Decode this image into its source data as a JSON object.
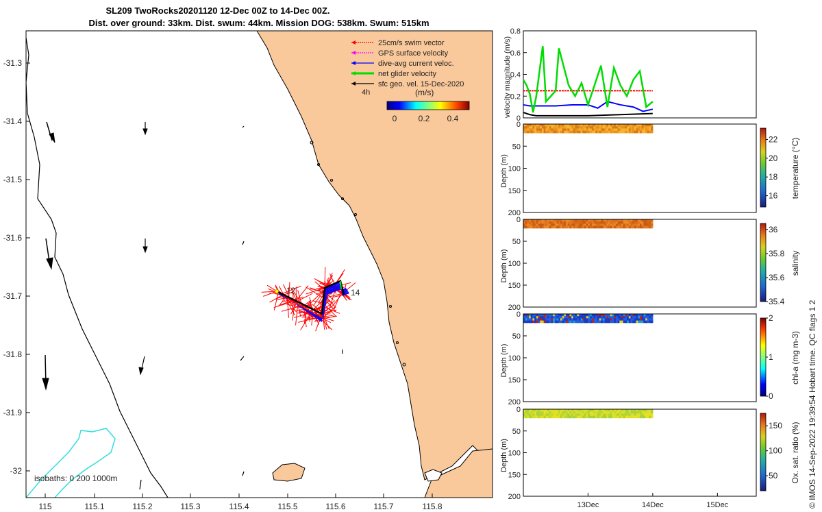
{
  "title": {
    "line1": "SL209 TwoRocks20201120 12-Dec 00Z to 14-Dec 00Z.",
    "line2": "Dist. over ground: 33km. Dist. swum: 44km. Mission DOG: 538km. Swum: 515km"
  },
  "credit": "© IMOS 14-Sep-2022 19:39:54 Hobart time. QC flags 1 2",
  "colors": {
    "land": "#f9c89b",
    "coast": "#000000",
    "isobath": "#33dddd",
    "swim": "#ff0000",
    "gps": "#ff00ff",
    "dive": "#0000ff",
    "net": "#00dd00",
    "geo": "#000000"
  },
  "map": {
    "x_ticks": [
      "115",
      "115.1",
      "115.2",
      "115.3",
      "115.4",
      "115.5",
      "115.6",
      "115.7",
      "115.8"
    ],
    "y_ticks": [
      "-31.3",
      "-31.4",
      "-31.5",
      "-31.6",
      "-31.7",
      "-31.8",
      "-31.9",
      "-32"
    ],
    "legend": [
      {
        "label": "25cm/s swim vector",
        "color": "#ff0000"
      },
      {
        "label": "GPS surface velocity",
        "color": "#ff00ff"
      },
      {
        "label": "dive-avg current veloc.",
        "color": "#0000ff"
      },
      {
        "label": "net glider velocity",
        "color": "#00dd00"
      },
      {
        "label": "sfc geo. vel. 15-Dec-2020",
        "color": "#000000"
      }
    ],
    "scale_label": "4h",
    "colorbar_unit": "(m/s)",
    "colorbar_ticks": [
      "0",
      "0.2",
      "0.4"
    ],
    "day_labels": [
      "12",
      "14"
    ],
    "isobaths_label": "isobaths: 0   200  1000m"
  },
  "chart_data": [
    {
      "type": "line",
      "title": "",
      "ylabel": "velocity magnitude (m/s)",
      "ylim": [
        0,
        0.8
      ],
      "y_ticks": [
        "0",
        "0.2",
        "0.4",
        "0.6",
        "0.8"
      ],
      "series": [
        {
          "name": "swim speed",
          "color": "#ff0000",
          "x": [
            12.0,
            12.2,
            12.4,
            12.6,
            12.8,
            13.0,
            13.2,
            13.4,
            13.6,
            13.8,
            14.0
          ],
          "values": [
            0.25,
            0.25,
            0.25,
            0.25,
            0.25,
            0.25,
            0.25,
            0.25,
            0.25,
            0.25,
            0.25
          ]
        },
        {
          "name": "dive-avg current",
          "color": "#0000ff",
          "x": [
            12.0,
            12.1,
            12.25,
            12.5,
            12.75,
            13.0,
            13.15,
            13.3,
            13.5,
            13.7,
            13.85,
            14.0
          ],
          "values": [
            0.12,
            0.11,
            0.11,
            0.11,
            0.12,
            0.12,
            0.09,
            0.15,
            0.12,
            0.1,
            0.06,
            0.08
          ]
        },
        {
          "name": "net glider velocity",
          "color": "#00dd00",
          "x": [
            12.0,
            12.05,
            12.1,
            12.15,
            12.2,
            12.3,
            12.35,
            12.5,
            12.55,
            12.7,
            12.8,
            12.9,
            13.0,
            13.1,
            13.2,
            13.3,
            13.4,
            13.5,
            13.6,
            13.7,
            13.8,
            13.9,
            14.0
          ],
          "values": [
            0.35,
            0.3,
            0.22,
            0.05,
            0.2,
            0.66,
            0.15,
            0.25,
            0.64,
            0.3,
            0.2,
            0.32,
            0.12,
            0.3,
            0.48,
            0.1,
            0.46,
            0.3,
            0.2,
            0.35,
            0.43,
            0.1,
            0.15
          ]
        },
        {
          "name": "sfc geo. vel.",
          "color": "#000000",
          "x": [
            12.0,
            12.1,
            12.2,
            12.5,
            13.0,
            13.5,
            14.0
          ],
          "values": [
            0.05,
            0.03,
            0.02,
            0.02,
            0.02,
            0.03,
            0.04
          ]
        }
      ]
    },
    {
      "type": "heatmap",
      "ylabel": "Depth (m)",
      "ylim": [
        200,
        0
      ],
      "y_ticks": [
        "0",
        "50",
        "100",
        "150",
        "200"
      ],
      "colorbar_label": "temperature (°C)",
      "colorbar_ticks": [
        "16",
        "18",
        "20",
        "22"
      ],
      "clim": [
        14.8,
        23.2
      ],
      "x_range": [
        12.0,
        14.0
      ],
      "depth_range": [
        0,
        15
      ]
    },
    {
      "type": "heatmap",
      "ylabel": "Depth (m)",
      "ylim": [
        200,
        0
      ],
      "y_ticks": [
        "0",
        "50",
        "100",
        "150",
        "200"
      ],
      "colorbar_label": "salinity",
      "colorbar_ticks": [
        "35.4",
        "35.6",
        "35.8",
        "36"
      ],
      "clim": [
        35.4,
        36.05
      ],
      "x_range": [
        12.0,
        14.0
      ],
      "depth_range": [
        0,
        15
      ]
    },
    {
      "type": "heatmap",
      "ylabel": "Depth (m)",
      "ylim": [
        200,
        0
      ],
      "y_ticks": [
        "0",
        "50",
        "100",
        "150",
        "200"
      ],
      "colorbar_label": "chl-a (mg m-3)",
      "colorbar_ticks": [
        "0",
        "1",
        "2"
      ],
      "clim": [
        0,
        2
      ],
      "x_range": [
        12.0,
        14.0
      ],
      "depth_range": [
        0,
        15
      ]
    },
    {
      "type": "heatmap",
      "ylabel": "Depth (m)",
      "ylim": [
        200,
        0
      ],
      "y_ticks": [
        "0",
        "50",
        "100",
        "150",
        "200"
      ],
      "x_ticks": [
        "13Dec",
        "14Dec",
        "15Dec"
      ],
      "colorbar_label": "Ox. sat. ratio (%)",
      "colorbar_ticks": [
        "50",
        "100",
        "150"
      ],
      "clim": [
        20,
        175
      ],
      "x_range": [
        12.0,
        14.0
      ],
      "depth_range": [
        0,
        15
      ]
    }
  ]
}
